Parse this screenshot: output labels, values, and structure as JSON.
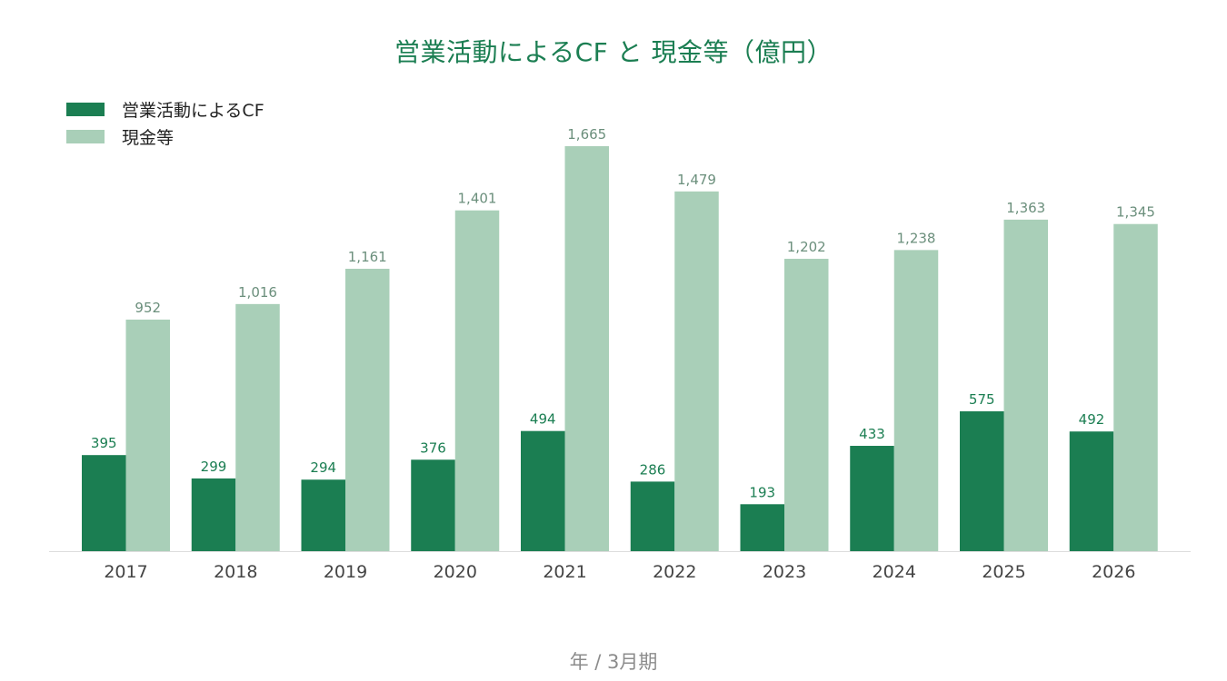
{
  "chart_data": {
    "type": "bar",
    "title": "営業活動によるCF と 現金等（億円）",
    "xlabel": "年 / 3月期",
    "ylabel": "",
    "categories": [
      "2017",
      "2018",
      "2019",
      "2020",
      "2021",
      "2022",
      "2023",
      "2024",
      "2025",
      "2026"
    ],
    "series": [
      {
        "name": "営業活動によるCF",
        "color": "#1b7e52",
        "values": [
          395,
          299,
          294,
          376,
          494,
          286,
          193,
          433,
          575,
          492
        ],
        "labels": [
          "395",
          "299",
          "294",
          "376",
          "494",
          "286",
          "193",
          "433",
          "575",
          "492"
        ]
      },
      {
        "name": "現金等",
        "color": "#a9cfb8",
        "values": [
          952,
          1016,
          1161,
          1401,
          1665,
          1479,
          1202,
          1238,
          1363,
          1345
        ],
        "labels": [
          "952",
          "1,016",
          "1,161",
          "1,401",
          "1,665",
          "1,479",
          "1,202",
          "1,238",
          "1,363",
          "1,345"
        ]
      }
    ],
    "ylim": [
      0,
      1665
    ],
    "grid": false,
    "legend_position": "top-left",
    "label_colors": [
      "#1b7e52",
      "#6b8f7c"
    ]
  }
}
